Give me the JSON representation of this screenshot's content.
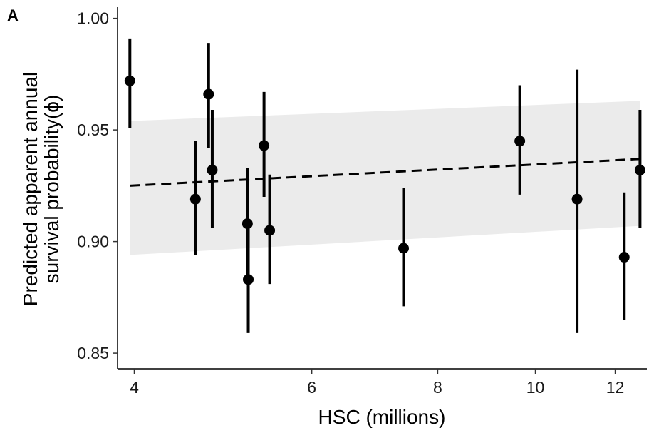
{
  "panel_label": "A",
  "chart_data": {
    "type": "scatter",
    "xlabel": "HSC (millions)",
    "ylabel_lines": [
      "Predicted apparent annual",
      "survival probability(ϕ)"
    ],
    "x_scale": "log",
    "x_ticks": [
      4,
      6,
      8,
      10,
      12
    ],
    "y_ticks": [
      0.85,
      0.9,
      0.95,
      1.0
    ],
    "y_tick_labels": [
      "0.85",
      "0.90",
      "0.95",
      "1.00"
    ],
    "xlim": [
      3.85,
      12.9
    ],
    "ylim": [
      0.843,
      1.005
    ],
    "grid": false,
    "legend": "none",
    "points": [
      {
        "x": 3.96,
        "y": 0.972,
        "lower": 0.951,
        "upper": 0.991
      },
      {
        "x": 4.6,
        "y": 0.919,
        "lower": 0.894,
        "upper": 0.945
      },
      {
        "x": 4.74,
        "y": 0.966,
        "lower": 0.942,
        "upper": 0.989
      },
      {
        "x": 4.78,
        "y": 0.932,
        "lower": 0.906,
        "upper": 0.959
      },
      {
        "x": 5.18,
        "y": 0.908,
        "lower": 0.881,
        "upper": 0.933
      },
      {
        "x": 5.19,
        "y": 0.883,
        "lower": 0.859,
        "upper": 0.908
      },
      {
        "x": 5.38,
        "y": 0.943,
        "lower": 0.92,
        "upper": 0.967
      },
      {
        "x": 5.45,
        "y": 0.905,
        "lower": 0.881,
        "upper": 0.93
      },
      {
        "x": 7.4,
        "y": 0.897,
        "lower": 0.871,
        "upper": 0.924
      },
      {
        "x": 9.65,
        "y": 0.945,
        "lower": 0.921,
        "upper": 0.97
      },
      {
        "x": 11.0,
        "y": 0.919,
        "lower": 0.859,
        "upper": 0.977
      },
      {
        "x": 12.25,
        "y": 0.893,
        "lower": 0.865,
        "upper": 0.922
      },
      {
        "x": 12.7,
        "y": 0.932,
        "lower": 0.906,
        "upper": 0.959
      }
    ],
    "fit_line": {
      "x": [
        3.96,
        12.7
      ],
      "y": [
        0.925,
        0.937
      ],
      "style": "dashed"
    },
    "confidence_band": {
      "x": [
        3.96,
        12.7
      ],
      "lower": [
        0.894,
        0.907
      ],
      "upper": [
        0.954,
        0.963
      ]
    },
    "colors": {
      "points": "#000000",
      "band": "#ebebeb",
      "fit_line": "#000000"
    }
  }
}
